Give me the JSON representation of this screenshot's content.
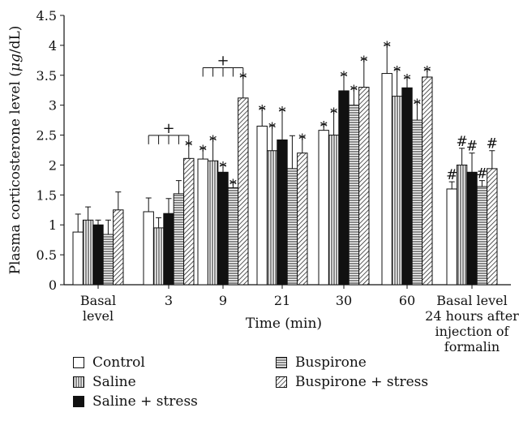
{
  "chart_data": {
    "type": "bar",
    "ylabel_parts": [
      "Plasma corticosterone level (",
      "μg",
      "/dL)"
    ],
    "xlabel": "Time (min)",
    "ylim": [
      0,
      4.5
    ],
    "yticks": [
      "0",
      "0.5",
      "1",
      "1.5",
      "2",
      "2.5",
      "3",
      "3.5",
      "4",
      "4.5"
    ],
    "categories": [
      {
        "lines": [
          "Basal",
          "level"
        ]
      },
      {
        "lines": [
          "3"
        ]
      },
      {
        "lines": [
          "9"
        ]
      },
      {
        "lines": [
          "21"
        ]
      },
      {
        "lines": [
          "30"
        ]
      },
      {
        "lines": [
          "60"
        ]
      },
      {
        "lines": [
          "Basal level",
          "24 hours after",
          "injection of",
          "formalin"
        ]
      }
    ],
    "series": [
      {
        "name": "Control",
        "pattern": "empty",
        "values": [
          0.88,
          1.22,
          2.1,
          2.65,
          2.58,
          3.53,
          1.6
        ],
        "errors": [
          0.3,
          0.23,
          0.18,
          0.3,
          0.1,
          0.48,
          0.12
        ],
        "marks": [
          "",
          "",
          "*",
          "*",
          "*",
          "*",
          "#"
        ]
      },
      {
        "name": "Saline",
        "pattern": "vertical",
        "values": [
          1.08,
          0.95,
          2.07,
          2.24,
          2.5,
          3.15,
          2.0
        ],
        "errors": [
          0.22,
          0.17,
          0.37,
          0.42,
          0.4,
          0.45,
          0.28
        ],
        "marks": [
          "",
          "",
          "*",
          "*",
          "*",
          "*",
          "#"
        ]
      },
      {
        "name": "Saline + stress",
        "pattern": "solid",
        "values": [
          1.0,
          1.19,
          1.88,
          2.42,
          3.24,
          3.29,
          1.88
        ],
        "errors": [
          0.08,
          0.25,
          0.12,
          0.5,
          0.27,
          0.17,
          0.32
        ],
        "marks": [
          "",
          "",
          "*",
          "*",
          "*",
          "*",
          "#"
        ]
      },
      {
        "name": "Buspirone",
        "pattern": "horizontal",
        "values": [
          0.84,
          1.52,
          1.62,
          1.94,
          3.0,
          2.75,
          1.64
        ],
        "errors": [
          0.24,
          0.22,
          0.09,
          0.55,
          0.28,
          0.3,
          0.1
        ],
        "marks": [
          "",
          "",
          "*",
          "",
          "*",
          "*",
          "#"
        ]
      },
      {
        "name": "Buspirone + stress",
        "pattern": "diagonal",
        "values": [
          1.25,
          2.11,
          3.12,
          2.2,
          3.3,
          3.47,
          1.94
        ],
        "errors": [
          0.3,
          0.25,
          0.37,
          0.27,
          0.47,
          0.13,
          0.3
        ],
        "marks": [
          "",
          "*",
          "*",
          "*",
          "*",
          "*",
          "#"
        ]
      }
    ],
    "brackets": [
      {
        "category": 1,
        "label": "+",
        "marks": [
          "",
          "",
          "",
          "",
          ""
        ]
      },
      {
        "category": 2,
        "label": "+",
        "marks": [
          "",
          "",
          "",
          "",
          "*"
        ]
      }
    ],
    "legend": [
      {
        "label": "Control",
        "pattern": "empty"
      },
      {
        "label": "Saline",
        "pattern": "vertical"
      },
      {
        "label": "Saline + stress",
        "pattern": "solid"
      },
      {
        "label": "Buspirone",
        "pattern": "horizontal"
      },
      {
        "label": "Buspirone + stress",
        "pattern": "diagonal"
      }
    ]
  }
}
